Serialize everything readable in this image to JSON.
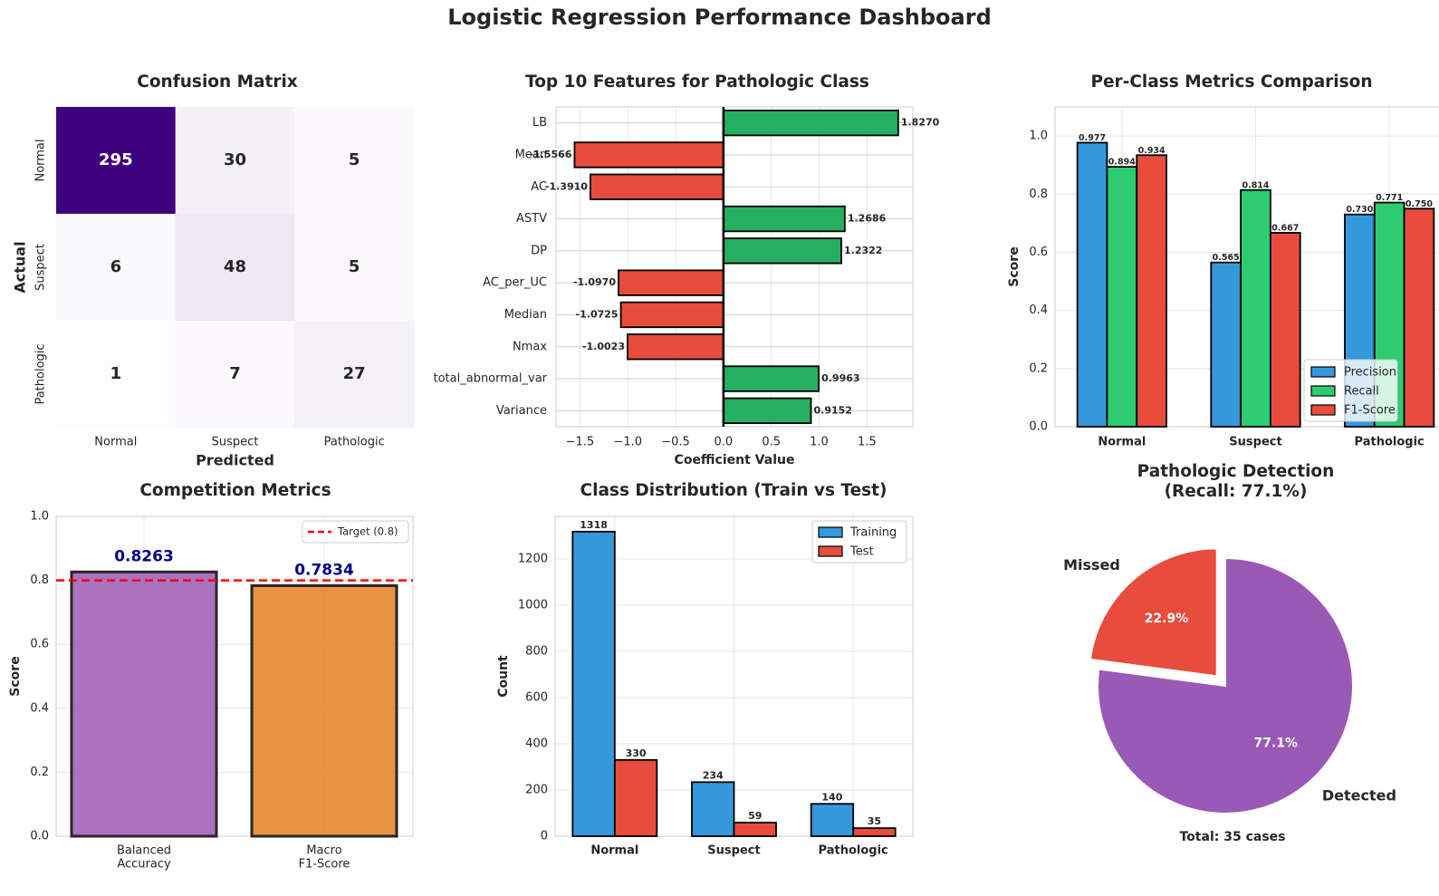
{
  "page": {
    "title": "Logistic Regression Performance Dashboard"
  },
  "colors": {
    "blue": "#3498db",
    "green": "#27ae60",
    "green_light": "#2ecc71",
    "red": "#e74c3c",
    "purple": "#9b59b6",
    "orange": "#e67e22",
    "navy": "#00008b",
    "target": "#ff0000",
    "cm_dark": "#3f007d",
    "cm_light": "#fcfbfd"
  },
  "chart_data": [
    {
      "id": "confusion",
      "type": "heatmap",
      "title": "Confusion Matrix",
      "xlabel": "Predicted",
      "ylabel": "Actual",
      "x_categories": [
        "Normal",
        "Suspect",
        "Pathologic"
      ],
      "y_categories": [
        "Normal",
        "Suspect",
        "Pathologic"
      ],
      "matrix": [
        [
          295,
          30,
          5
        ],
        [
          6,
          48,
          5
        ],
        [
          1,
          7,
          27
        ]
      ],
      "colormap": "Purples"
    },
    {
      "id": "features",
      "type": "bar",
      "orientation": "horizontal",
      "title": "Top 10 Features for Pathologic Class",
      "xlabel": "Coefficient Value",
      "categories": [
        "LB",
        "Mean",
        "AC",
        "ASTV",
        "DP",
        "AC_per_UC",
        "Median",
        "Nmax",
        "total_abnormal_var",
        "Variance"
      ],
      "values": [
        1.827,
        -1.5566,
        -1.391,
        1.2686,
        1.2322,
        -1.097,
        -1.0725,
        -1.0023,
        0.9963,
        0.9152
      ],
      "value_labels": [
        "1.8270",
        "-1.5566",
        "-1.3910",
        "1.2686",
        "1.2322",
        "-1.0970",
        "-1.0725",
        "-1.0023",
        "0.9963",
        "0.9152"
      ],
      "xlim": [
        -1.75,
        1.98
      ],
      "xticks": [
        -1.5,
        -1.0,
        -0.5,
        0.0,
        0.5,
        1.0,
        1.5
      ],
      "xtick_labels": [
        "−1.5",
        "−1.0",
        "−0.5",
        "0.0",
        "0.5",
        "1.0",
        "1.5"
      ],
      "grid": true
    },
    {
      "id": "perclass",
      "type": "bar",
      "title": "Per-Class Metrics Comparison",
      "ylabel": "Score",
      "categories": [
        "Normal",
        "Suspect",
        "Pathologic"
      ],
      "series": [
        {
          "name": "Precision",
          "values": [
            0.977,
            0.565,
            0.73
          ],
          "labels": [
            "0.977",
            "0.565",
            "0.730"
          ]
        },
        {
          "name": "Recall",
          "values": [
            0.894,
            0.814,
            0.771
          ],
          "labels": [
            "0.894",
            "0.814",
            "0.771"
          ]
        },
        {
          "name": "F1-Score",
          "values": [
            0.934,
            0.667,
            0.75
          ],
          "labels": [
            "0.934",
            "0.667",
            "0.750"
          ]
        }
      ],
      "ylim": [
        0,
        1.1
      ],
      "yticks": [
        0.0,
        0.2,
        0.4,
        0.6,
        0.8,
        1.0
      ],
      "ytick_labels": [
        "0.0",
        "0.2",
        "0.4",
        "0.6",
        "0.8",
        "1.0"
      ],
      "legend": "lower-right",
      "grid": true
    },
    {
      "id": "competition",
      "type": "bar",
      "title": "Competition Metrics",
      "ylabel": "Score",
      "categories": [
        [
          "Balanced",
          "Accuracy"
        ],
        [
          "Macro",
          "F1-Score"
        ]
      ],
      "values": [
        0.8263,
        0.7834
      ],
      "value_labels": [
        "0.8263",
        "0.7834"
      ],
      "target": {
        "value": 0.8,
        "label": "Target (0.8)"
      },
      "ylim": [
        0,
        1.0
      ],
      "yticks": [
        0.0,
        0.2,
        0.4,
        0.6,
        0.8,
        1.0
      ],
      "ytick_labels": [
        "0.0",
        "0.2",
        "0.4",
        "0.6",
        "0.8",
        "1.0"
      ],
      "legend": "upper-right",
      "grid": true
    },
    {
      "id": "distribution",
      "type": "bar",
      "title": "Class Distribution (Train vs Test)",
      "ylabel": "Count",
      "categories": [
        "Normal",
        "Suspect",
        "Pathologic"
      ],
      "series": [
        {
          "name": "Training",
          "values": [
            1318,
            234,
            140
          ],
          "labels": [
            "1318",
            "234",
            "140"
          ]
        },
        {
          "name": "Test",
          "values": [
            330,
            59,
            35
          ],
          "labels": [
            "330",
            "59",
            "35"
          ]
        }
      ],
      "ylim": [
        0,
        1384
      ],
      "yticks": [
        0,
        200,
        400,
        600,
        800,
        1000,
        1200
      ],
      "ytick_labels": [
        "0",
        "200",
        "400",
        "600",
        "800",
        "1000",
        "1200"
      ],
      "legend": "upper-right",
      "grid": true
    },
    {
      "id": "pathologic_pie",
      "type": "pie",
      "title": [
        "Pathologic Detection",
        "(Recall: 77.1%)"
      ],
      "labels": [
        "Detected",
        "Missed"
      ],
      "values": [
        77.1,
        22.9
      ],
      "pct_labels": [
        "77.1%",
        "22.9%"
      ],
      "explode": [
        0,
        0.1
      ],
      "footer": "Total: 35 cases"
    }
  ]
}
